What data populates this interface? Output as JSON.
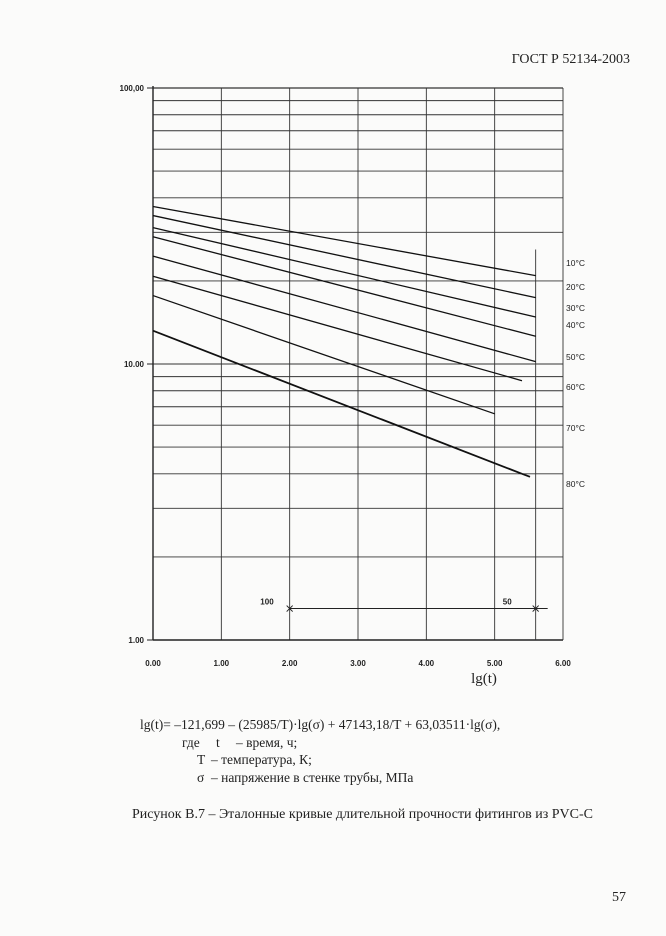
{
  "header": {
    "standard": "ГОСТ Р 52134-2003"
  },
  "chart_data": {
    "type": "line",
    "xlabel": "lg(t)",
    "ylabel": "",
    "xlim": [
      0,
      6
    ],
    "ylim": [
      1,
      100
    ],
    "y_scale": "log",
    "x_ticks": [
      "0.00",
      "1.00",
      "2.00",
      "3.00",
      "4.00",
      "5.00",
      "6.00"
    ],
    "y_ticks": [
      {
        "value": 100,
        "label": "100,00"
      },
      {
        "value": 10,
        "label": "10.00"
      },
      {
        "value": 1,
        "label": "1.00"
      }
    ],
    "grid": true,
    "series": [
      {
        "name": "10°C",
        "x": [
          0,
          5.6
        ],
        "y": [
          37.2,
          20.9
        ]
      },
      {
        "name": "20°C",
        "x": [
          0,
          5.6
        ],
        "y": [
          34.5,
          17.4
        ]
      },
      {
        "name": "30°C",
        "x": [
          0,
          5.6
        ],
        "y": [
          31.2,
          14.8
        ]
      },
      {
        "name": "40°C",
        "x": [
          0,
          5.6
        ],
        "y": [
          28.9,
          12.6
        ]
      },
      {
        "name": "50°C",
        "x": [
          0,
          5.6
        ],
        "y": [
          24.6,
          10.2
        ]
      },
      {
        "name": "60°C",
        "x": [
          0,
          5.4
        ],
        "y": [
          20.8,
          8.7
        ]
      },
      {
        "name": "70°C",
        "x": [
          0,
          5.0
        ],
        "y": [
          17.7,
          6.6
        ]
      },
      {
        "name": "80°C",
        "x": [
          0,
          5.4
        ],
        "y": [
          13.2,
          4.0
        ]
      }
    ],
    "markers": [
      {
        "label": "100",
        "x": 2.0,
        "y": 1.3
      },
      {
        "label": "50",
        "x": 5.6,
        "y": 1.3
      }
    ],
    "marker_line": {
      "x": [
        2.0,
        5.6
      ],
      "y": [
        1.3,
        1.3
      ]
    }
  },
  "formula": {
    "equation": "lg(t)= –121,699 – (25985/T)·lg(σ) + 47143,18/T + 63,03511·lg(σ),",
    "where": "где",
    "vars": [
      {
        "sym": "t",
        "desc": "время, ч;"
      },
      {
        "sym": "T",
        "desc": "температура, К;"
      },
      {
        "sym": "σ",
        "desc": "напряжение в стенке трубы, МПа"
      }
    ]
  },
  "caption": "Рисунок В.7 – Эталонные кривые длительной прочности фитингов из PVC-C",
  "page_number": "57"
}
